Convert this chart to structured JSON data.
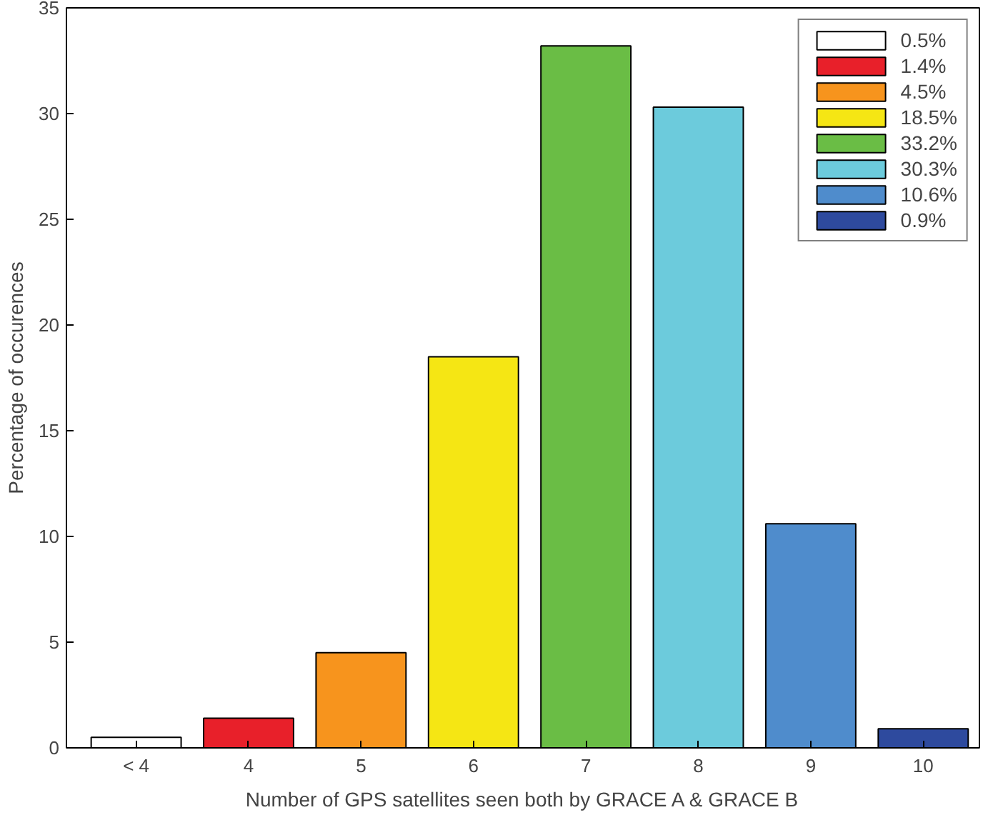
{
  "chart_data": {
    "type": "bar",
    "xlabel": "Number of GPS satellites seen both by GRACE A & GRACE B",
    "ylabel": "Percentage of occurences",
    "categories": [
      "< 4",
      "4",
      "5",
      "6",
      "7",
      "8",
      "9",
      "10"
    ],
    "series": [
      {
        "name": "0.5%",
        "color": "#ffffff",
        "values": [
          0.5,
          null,
          null,
          null,
          null,
          null,
          null,
          null
        ]
      },
      {
        "name": "1.4%",
        "color": "#e8202a",
        "values": [
          null,
          1.4,
          null,
          null,
          null,
          null,
          null,
          null
        ]
      },
      {
        "name": "4.5%",
        "color": "#f7941d",
        "values": [
          null,
          null,
          4.5,
          null,
          null,
          null,
          null,
          null
        ]
      },
      {
        "name": "18.5%",
        "color": "#f5e614",
        "values": [
          null,
          null,
          null,
          18.5,
          null,
          null,
          null,
          null
        ]
      },
      {
        "name": "33.2%",
        "color": "#6abd45",
        "values": [
          null,
          null,
          null,
          null,
          33.2,
          null,
          null,
          null
        ]
      },
      {
        "name": "30.3%",
        "color": "#6ccbdc",
        "values": [
          null,
          null,
          null,
          null,
          null,
          30.3,
          null,
          null
        ]
      },
      {
        "name": "10.6%",
        "color": "#4f8ccc",
        "values": [
          null,
          null,
          null,
          null,
          null,
          null,
          10.6,
          null
        ]
      },
      {
        "name": "0.9%",
        "color": "#2e4a9e",
        "values": [
          null,
          null,
          null,
          null,
          null,
          null,
          null,
          0.9
        ]
      }
    ],
    "ylim": [
      0,
      35
    ],
    "yticks": [
      0,
      5,
      10,
      15,
      20,
      25,
      30,
      35
    ],
    "legend": "top right"
  }
}
